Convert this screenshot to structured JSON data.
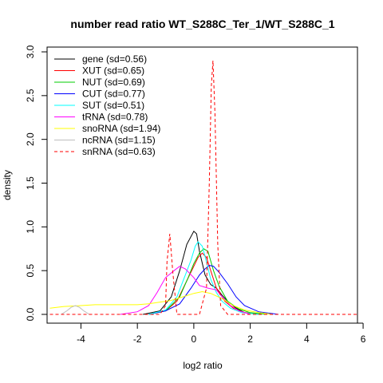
{
  "chart_data": {
    "type": "line",
    "title": "number read ratio WT_S288C_Ter_1/WT_S288C_1",
    "xlabel": "log2 ratio",
    "ylabel": "density",
    "xlim": [
      -5.2,
      5.8
    ],
    "ylim": [
      0,
      3.0
    ],
    "x_ticks": [
      "-4",
      "-2",
      "0",
      "2",
      "4",
      "6"
    ],
    "y_ticks": [
      "0.0",
      "0.5",
      "1.0",
      "1.5",
      "2.0",
      "2.5",
      "3.0"
    ],
    "grid": false,
    "legend_position": "top-left",
    "series": [
      {
        "name": "gene (sd=0.56)",
        "color": "#000000",
        "dash": "solid",
        "x": [
          -1.8,
          -1.2,
          -0.8,
          -0.5,
          -0.25,
          0.0,
          0.1,
          0.2,
          0.4,
          0.6,
          0.8,
          1.0,
          1.2,
          1.5,
          1.8,
          2.3
        ],
        "y": [
          0.0,
          0.04,
          0.2,
          0.5,
          0.8,
          0.95,
          0.92,
          0.72,
          0.45,
          0.34,
          0.3,
          0.22,
          0.15,
          0.07,
          0.02,
          0.0
        ]
      },
      {
        "name": "XUT (sd=0.65)",
        "color": "#ff0000",
        "dash": "solid",
        "x": [
          -1.6,
          -1.0,
          -0.6,
          -0.3,
          0.0,
          0.15,
          0.3,
          0.45,
          0.6,
          0.8,
          1.1,
          1.4,
          1.8,
          2.3
        ],
        "y": [
          0.0,
          0.04,
          0.15,
          0.35,
          0.55,
          0.65,
          0.7,
          0.65,
          0.5,
          0.3,
          0.15,
          0.07,
          0.02,
          0.0
        ]
      },
      {
        "name": "NUT (sd=0.69)",
        "color": "#00cc00",
        "dash": "solid",
        "x": [
          -1.6,
          -1.0,
          -0.5,
          -0.2,
          0.0,
          0.2,
          0.35,
          0.5,
          0.7,
          0.9,
          1.2,
          1.6,
          2.0,
          2.6
        ],
        "y": [
          0.0,
          0.04,
          0.2,
          0.42,
          0.58,
          0.7,
          0.75,
          0.72,
          0.5,
          0.32,
          0.15,
          0.06,
          0.02,
          0.0
        ]
      },
      {
        "name": "CUT (sd=0.77)",
        "color": "#0000ff",
        "dash": "solid",
        "x": [
          -1.6,
          -1.0,
          -0.5,
          -0.1,
          0.2,
          0.4,
          0.55,
          0.7,
          0.9,
          1.2,
          1.5,
          1.8,
          2.3,
          3.0
        ],
        "y": [
          0.0,
          0.04,
          0.12,
          0.3,
          0.45,
          0.52,
          0.56,
          0.55,
          0.48,
          0.35,
          0.2,
          0.1,
          0.03,
          0.0
        ]
      },
      {
        "name": "SUT (sd=0.51)",
        "color": "#00ffff",
        "dash": "solid",
        "x": [
          -1.6,
          -1.0,
          -0.6,
          -0.3,
          -0.1,
          0.05,
          0.15,
          0.3,
          0.45,
          0.6,
          0.8,
          1.0,
          1.3,
          1.7,
          2.3
        ],
        "y": [
          0.0,
          0.05,
          0.2,
          0.45,
          0.62,
          0.78,
          0.83,
          0.78,
          0.6,
          0.4,
          0.25,
          0.15,
          0.07,
          0.02,
          0.0
        ]
      },
      {
        "name": "tRNA (sd=0.78)",
        "color": "#ff00ff",
        "dash": "solid",
        "x": [
          -2.6,
          -2.0,
          -1.6,
          -1.3,
          -1.0,
          -0.7,
          -0.5,
          -0.3,
          0.0,
          0.2,
          0.5,
          0.8,
          1.0,
          1.3,
          1.6,
          2.0
        ],
        "y": [
          0.0,
          0.03,
          0.1,
          0.25,
          0.42,
          0.5,
          0.55,
          0.52,
          0.42,
          0.33,
          0.3,
          0.28,
          0.2,
          0.1,
          0.04,
          0.0
        ]
      },
      {
        "name": "snoRNA (sd=1.94)",
        "color": "#ffff00",
        "dash": "solid",
        "x": [
          -5.1,
          -4.6,
          -4.0,
          -3.5,
          -3.0,
          -2.5,
          -2.0,
          -1.6,
          -1.2,
          -0.8,
          -0.4,
          0.0,
          0.3,
          0.6,
          1.0,
          1.4,
          1.8,
          2.3,
          2.8
        ],
        "y": [
          0.07,
          0.09,
          0.1,
          0.11,
          0.11,
          0.11,
          0.11,
          0.12,
          0.14,
          0.16,
          0.2,
          0.24,
          0.26,
          0.24,
          0.18,
          0.1,
          0.05,
          0.02,
          0.0
        ]
      },
      {
        "name": "ncRNA (sd=1.15)",
        "color": "#bebebe",
        "dash": "solid",
        "x": [
          -4.7,
          -4.5,
          -4.35,
          -4.2,
          -4.05,
          -3.9,
          -3.7
        ],
        "y": [
          0.0,
          0.04,
          0.08,
          0.1,
          0.08,
          0.04,
          0.0
        ]
      },
      {
        "name": "snRNA (sd=0.63)",
        "color": "#ff0000",
        "dash": "dashed",
        "x": [
          -5.1,
          -1.2,
          -1.0,
          -0.95,
          -0.85,
          -0.75,
          -0.6,
          0.2,
          0.45,
          0.55,
          0.62,
          0.68,
          0.75,
          0.85,
          0.95,
          1.2,
          5.8
        ],
        "y": [
          0.0,
          0.0,
          0.1,
          0.6,
          0.92,
          0.5,
          0.0,
          0.0,
          0.3,
          1.5,
          2.6,
          2.9,
          2.3,
          0.8,
          0.1,
          0.0,
          0.0
        ]
      }
    ]
  }
}
